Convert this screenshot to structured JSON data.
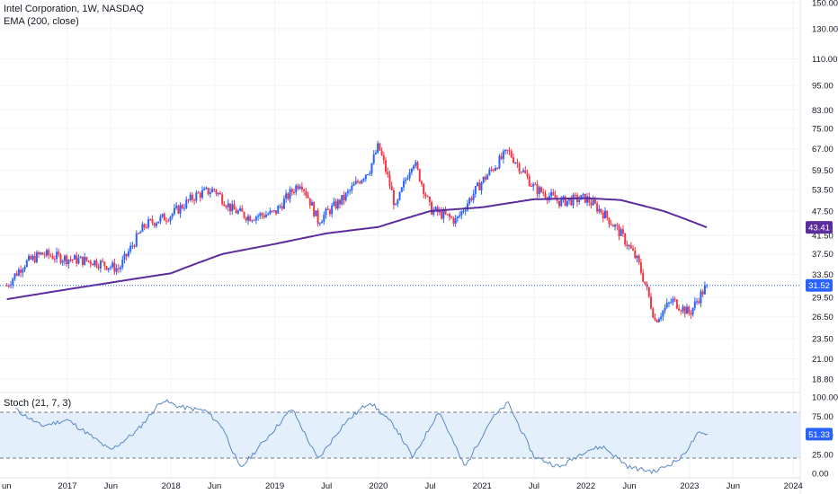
{
  "header": {
    "title": "Intel Corporation, 1W, NASDAQ",
    "indicator": "EMA (200, close)",
    "oscillator": "Stoch (21, 7, 3)"
  },
  "colors": {
    "up": "#2962ff",
    "down": "#f23645",
    "ema": "#5b2c9c",
    "stoch": "#5a86c6",
    "band_fill": "#e3f0fb",
    "last_price_badge": "#2962ff",
    "ema_badge": "#5b2c9c"
  },
  "chart_data": [
    {
      "type": "candlestick",
      "scale": "log",
      "price_axis_labels": [
        "150.00",
        "130.00",
        "110.00",
        "95.00",
        "83.00",
        "75.00",
        "67.00",
        "59.50",
        "53.50",
        "47.50",
        "41.50",
        "37.50",
        "33.50",
        "29.50",
        "26.50",
        "23.50",
        "21.00",
        "18.80"
      ],
      "time_axis_labels": [
        "2017",
        "Jun",
        "2018",
        "Jun",
        "2019",
        "Jul",
        "2020",
        "Jul",
        "2021",
        "Jul",
        "2022",
        "Jun",
        "2023",
        "Jun",
        "2024"
      ],
      "price_series": {
        "name": "INTC",
        "approx_weekly_closes": [
          {
            "date": "2016-06",
            "close": 31.5
          },
          {
            "date": "2016-08",
            "close": 35.5
          },
          {
            "date": "2016-10",
            "close": 37.5
          },
          {
            "date": "2017-01",
            "close": 36.5
          },
          {
            "date": "2017-04",
            "close": 36.0
          },
          {
            "date": "2017-07",
            "close": 34.5
          },
          {
            "date": "2017-10",
            "close": 44.0
          },
          {
            "date": "2018-01",
            "close": 46.5
          },
          {
            "date": "2018-04",
            "close": 52.0
          },
          {
            "date": "2018-06",
            "close": 53.5
          },
          {
            "date": "2018-08",
            "close": 48.0
          },
          {
            "date": "2018-10",
            "close": 46.0
          },
          {
            "date": "2019-01",
            "close": 47.0
          },
          {
            "date": "2019-04",
            "close": 56.0
          },
          {
            "date": "2019-06",
            "close": 45.0
          },
          {
            "date": "2019-09",
            "close": 51.0
          },
          {
            "date": "2019-12",
            "close": 60.0
          },
          {
            "date": "2020-01",
            "close": 68.0
          },
          {
            "date": "2020-03",
            "close": 48.0
          },
          {
            "date": "2020-05",
            "close": 63.0
          },
          {
            "date": "2020-07",
            "close": 48.0
          },
          {
            "date": "2020-10",
            "close": 45.0
          },
          {
            "date": "2021-01",
            "close": 56.0
          },
          {
            "date": "2021-04",
            "close": 66.0
          },
          {
            "date": "2021-07",
            "close": 54.0
          },
          {
            "date": "2021-10",
            "close": 50.0
          },
          {
            "date": "2022-01",
            "close": 51.0
          },
          {
            "date": "2022-03",
            "close": 47.0
          },
          {
            "date": "2022-05",
            "close": 42.0
          },
          {
            "date": "2022-07",
            "close": 36.0
          },
          {
            "date": "2022-09",
            "close": 26.0
          },
          {
            "date": "2022-11",
            "close": 29.0
          },
          {
            "date": "2023-01",
            "close": 27.0
          },
          {
            "date": "2023-03",
            "close": 31.52
          }
        ]
      },
      "ema_series": {
        "name": "EMA (200, close)",
        "approx_values": [
          {
            "date": "2016-06",
            "value": 29.2
          },
          {
            "date": "2017-06",
            "value": 32.0
          },
          {
            "date": "2018-01",
            "value": 33.7
          },
          {
            "date": "2018-07",
            "value": 37.5
          },
          {
            "date": "2019-01",
            "value": 39.6
          },
          {
            "date": "2019-07",
            "value": 42.0
          },
          {
            "date": "2020-01",
            "value": 43.5
          },
          {
            "date": "2020-07",
            "value": 47.5
          },
          {
            "date": "2021-01",
            "value": 48.5
          },
          {
            "date": "2021-07",
            "value": 50.7
          },
          {
            "date": "2022-01",
            "value": 51.0
          },
          {
            "date": "2022-05",
            "value": 50.5
          },
          {
            "date": "2022-10",
            "value": 47.5
          },
          {
            "date": "2023-03",
            "value": 43.41
          }
        ]
      },
      "last_price": "31.52",
      "ema_last": "43.41"
    },
    {
      "type": "line",
      "name": "Stoch (21, 7, 3)",
      "scale": "linear",
      "ylim": [
        0,
        100
      ],
      "y_axis_labels": [
        "100.00",
        "75.00",
        "50.00",
        "25.00",
        "0.00"
      ],
      "band": [
        20,
        80
      ],
      "last_value": "51.33",
      "approx_values": [
        {
          "date": "2016-07",
          "value": 84
        },
        {
          "date": "2016-10",
          "value": 62
        },
        {
          "date": "2017-01",
          "value": 70
        },
        {
          "date": "2017-03",
          "value": 55
        },
        {
          "date": "2017-06",
          "value": 30
        },
        {
          "date": "2017-09",
          "value": 55
        },
        {
          "date": "2017-12",
          "value": 96
        },
        {
          "date": "2018-02",
          "value": 87
        },
        {
          "date": "2018-05",
          "value": 82
        },
        {
          "date": "2018-07",
          "value": 60
        },
        {
          "date": "2018-09",
          "value": 6
        },
        {
          "date": "2018-12",
          "value": 45
        },
        {
          "date": "2019-03",
          "value": 85
        },
        {
          "date": "2019-06",
          "value": 18
        },
        {
          "date": "2019-09",
          "value": 65
        },
        {
          "date": "2019-12",
          "value": 94
        },
        {
          "date": "2020-03",
          "value": 60
        },
        {
          "date": "2020-05",
          "value": 20
        },
        {
          "date": "2020-08",
          "value": 82
        },
        {
          "date": "2020-11",
          "value": 8
        },
        {
          "date": "2021-02",
          "value": 70
        },
        {
          "date": "2021-04",
          "value": 92
        },
        {
          "date": "2021-07",
          "value": 22
        },
        {
          "date": "2021-10",
          "value": 8
        },
        {
          "date": "2022-01",
          "value": 30
        },
        {
          "date": "2022-03",
          "value": 35
        },
        {
          "date": "2022-06",
          "value": 8
        },
        {
          "date": "2022-09",
          "value": 2
        },
        {
          "date": "2022-12",
          "value": 20
        },
        {
          "date": "2023-02",
          "value": 52
        },
        {
          "date": "2023-03",
          "value": 51.33
        }
      ]
    }
  ]
}
